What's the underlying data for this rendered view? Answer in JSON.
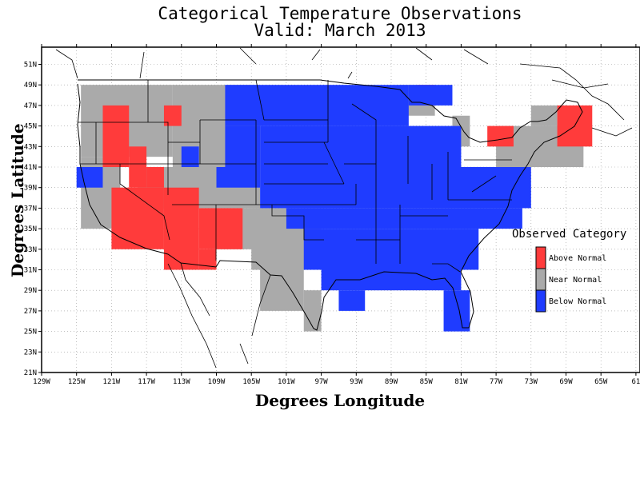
{
  "title": "Categorical Temperature Observations",
  "subtitle": "Valid: March 2013",
  "xlabel": "Degrees Longitude",
  "ylabel": "Degrees Latitude",
  "colors": {
    "above": "#ff3b3b",
    "near": "#aaaaaa",
    "below": "#1f3cff"
  },
  "chart_data": {
    "type": "heatmap",
    "xlim": [
      -129,
      -61
    ],
    "ylim": [
      21,
      52
    ],
    "x_ticks": [
      "129W",
      "125W",
      "121W",
      "117W",
      "113W",
      "109W",
      "105W",
      "101W",
      "97W",
      "93W",
      "89W",
      "85W",
      "81W",
      "77W",
      "73W",
      "69W",
      "65W",
      "61"
    ],
    "y_ticks": [
      "21N",
      "23N",
      "25N",
      "27N",
      "29N",
      "31N",
      "33N",
      "35N",
      "37N",
      "39N",
      "41N",
      "43N",
      "45N",
      "47N",
      "49N",
      "51N"
    ],
    "grid": true,
    "legend": {
      "title": "Observed Category",
      "placement": "right",
      "items": [
        {
          "key": "above",
          "label": "Above Normal"
        },
        {
          "key": "near",
          "label": "Near Normal"
        },
        {
          "key": "below",
          "label": "Below Normal"
        }
      ]
    },
    "regions": [
      {
        "cat": "near",
        "lon": [
          -124.5,
          -114
        ],
        "lat": [
          42,
          49
        ]
      },
      {
        "cat": "near",
        "lon": [
          -114,
          -104
        ],
        "lat": [
          41,
          49
        ]
      },
      {
        "cat": "near",
        "lon": [
          -124.5,
          -120
        ],
        "lat": [
          35,
          42
        ]
      },
      {
        "cat": "near",
        "lon": [
          -118,
          -109
        ],
        "lat": [
          37,
          41
        ]
      },
      {
        "cat": "near",
        "lon": [
          -109,
          -104
        ],
        "lat": [
          37,
          41
        ]
      },
      {
        "cat": "near",
        "lon": [
          -105,
          -97
        ],
        "lat": [
          31,
          37
        ]
      },
      {
        "cat": "near",
        "lon": [
          -104,
          -99
        ],
        "lat": [
          27,
          31
        ]
      },
      {
        "cat": "near",
        "lon": [
          -99,
          -97
        ],
        "lat": [
          25,
          29
        ]
      },
      {
        "cat": "near",
        "lon": [
          -110,
          -104
        ],
        "lat": [
          33,
          37
        ]
      },
      {
        "cat": "near",
        "lon": [
          -88,
          -84
        ],
        "lat": [
          46,
          49
        ]
      },
      {
        "cat": "near",
        "lon": [
          -82,
          -80
        ],
        "lat": [
          43,
          46
        ]
      },
      {
        "cat": "near",
        "lon": [
          -77,
          -67
        ],
        "lat": [
          41,
          45
        ]
      },
      {
        "cat": "near",
        "lon": [
          -73,
          -70
        ],
        "lat": [
          45,
          47
        ]
      },
      {
        "cat": "above",
        "lon": [
          -122,
          -119
        ],
        "lat": [
          41,
          47
        ]
      },
      {
        "cat": "above",
        "lon": [
          -119,
          -117
        ],
        "lat": [
          39,
          43
        ]
      },
      {
        "cat": "above",
        "lon": [
          -121,
          -115
        ],
        "lat": [
          33,
          39
        ]
      },
      {
        "cat": "above",
        "lon": [
          -117,
          -115
        ],
        "lat": [
          39,
          41
        ]
      },
      {
        "cat": "above",
        "lon": [
          -115,
          -111
        ],
        "lat": [
          31,
          39
        ]
      },
      {
        "cat": "above",
        "lon": [
          -111,
          -106
        ],
        "lat": [
          33,
          37
        ]
      },
      {
        "cat": "above",
        "lon": [
          -111,
          -109
        ],
        "lat": [
          31,
          33
        ]
      },
      {
        "cat": "above",
        "lon": [
          -115,
          -113
        ],
        "lat": [
          45,
          47
        ]
      },
      {
        "cat": "above",
        "lon": [
          -86,
          -84
        ],
        "lat": [
          47,
          49
        ]
      },
      {
        "cat": "above",
        "lon": [
          -78,
          -75
        ],
        "lat": [
          43,
          45
        ]
      },
      {
        "cat": "above",
        "lon": [
          -70,
          -66
        ],
        "lat": [
          43,
          47
        ]
      },
      {
        "cat": "below",
        "lon": [
          -125,
          -122
        ],
        "lat": [
          39,
          41
        ]
      },
      {
        "cat": "below",
        "lon": [
          -113,
          -111
        ],
        "lat": [
          41,
          43
        ]
      },
      {
        "cat": "below",
        "lon": [
          -108,
          -104
        ],
        "lat": [
          41,
          45
        ]
      },
      {
        "cat": "below",
        "lon": [
          -109,
          -104
        ],
        "lat": [
          39,
          41
        ]
      },
      {
        "cat": "below",
        "lon": [
          -108,
          -87
        ],
        "lat": [
          45,
          49
        ]
      },
      {
        "cat": "below",
        "lon": [
          -104,
          -81
        ],
        "lat": [
          41,
          45
        ]
      },
      {
        "cat": "below",
        "lon": [
          -104,
          -73
        ],
        "lat": [
          37,
          41
        ]
      },
      {
        "cat": "below",
        "lon": [
          -101,
          -74
        ],
        "lat": [
          35,
          37
        ]
      },
      {
        "cat": "below",
        "lon": [
          -99,
          -79
        ],
        "lat": [
          31,
          35
        ]
      },
      {
        "cat": "below",
        "lon": [
          -97,
          -81
        ],
        "lat": [
          29,
          31
        ]
      },
      {
        "cat": "below",
        "lon": [
          -95,
          -92
        ],
        "lat": [
          27,
          29
        ]
      },
      {
        "cat": "below",
        "lon": [
          -83,
          -80
        ],
        "lat": [
          25,
          29
        ]
      },
      {
        "cat": "below",
        "lon": [
          -87,
          -82
        ],
        "lat": [
          47,
          49
        ]
      }
    ]
  }
}
